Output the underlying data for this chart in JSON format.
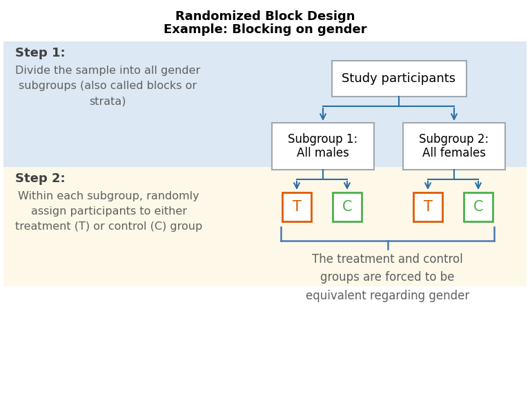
{
  "title_line1": "Randomized Block Design",
  "title_line2": "Example: Blocking on gender",
  "title_fontsize": 13,
  "step1_label": "Step 1:",
  "step1_text": "Divide the sample into all gender\nsubgroups (also called blocks or\nstrata)",
  "step2_label": "Step 2:",
  "step2_text": "Within each subgroup, randomly\nassign participants to either\ntreatment (T) or control (C) group",
  "step1_bg": "#dce8f3",
  "step2_bg": "#fdf8e8",
  "box_border": "#a0a8b0",
  "arrow_color": "#2a6fa8",
  "brace_color": "#4a7ab5",
  "T_border": "#e05a00",
  "T_text": "#e05a00",
  "C_border": "#4ab04a",
  "C_text": "#4ab04a",
  "bottom_text": "The treatment and control\ngroups are forced to be\nequivalent regarding gender",
  "step_label_color": "#404040",
  "step_text_color": "#606060",
  "bg_color": "#ffffff"
}
